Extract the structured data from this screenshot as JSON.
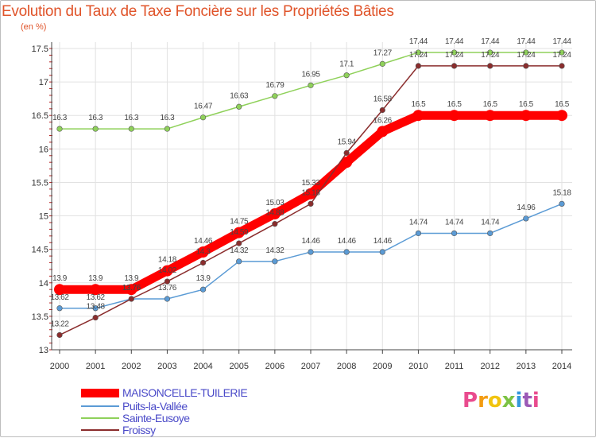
{
  "chart_data": {
    "type": "line",
    "title": "Evolution du Taux de Taxe Foncière sur les Propriétés Bâties",
    "ylabel": "(en %)",
    "xlabel": "",
    "x": [
      "2000",
      "2001",
      "2002",
      "2003",
      "2004",
      "2005",
      "2006",
      "2007",
      "2008",
      "2009",
      "2010",
      "2011",
      "2012",
      "2013",
      "2014"
    ],
    "ylim": [
      13,
      17.5
    ],
    "yticks": [
      "13",
      "13.5",
      "14",
      "14.5",
      "15",
      "15.5",
      "16",
      "16.5",
      "17",
      "17.5"
    ],
    "series": [
      {
        "name": "MAISONCELLE-TUILERIE",
        "color": "#ff0000",
        "values": [
          13.9,
          13.9,
          13.9,
          14.18,
          14.46,
          14.75,
          15.03,
          15.33,
          15.8,
          16.26,
          16.5,
          16.5,
          16.5,
          16.5,
          16.5
        ],
        "labels": [
          "13.9",
          "13.9",
          "13.9",
          "14.18",
          "14.46",
          "14.75",
          "15.03",
          "15.33",
          "",
          "16.26",
          "16.5",
          "16.5",
          "16.5",
          "16.5",
          "16.5"
        ]
      },
      {
        "name": "Puits-la-Vallée",
        "color": "#5b9bd5",
        "values": [
          13.62,
          13.62,
          13.76,
          13.76,
          13.9,
          14.32,
          14.32,
          14.46,
          14.46,
          14.46,
          14.74,
          14.74,
          14.74,
          14.96,
          15.18
        ],
        "labels": [
          "13.62",
          "13.62",
          "13.76",
          "13.76",
          "13.9",
          "14.32",
          "14.32",
          "14.46",
          "14.46",
          "14.46",
          "14.74",
          "14.74",
          "14.74",
          "14.96",
          "15.18"
        ]
      },
      {
        "name": "Sainte-Eusoye",
        "color": "#8fd15a",
        "values": [
          16.3,
          16.3,
          16.3,
          16.3,
          16.47,
          16.63,
          16.79,
          16.95,
          17.1,
          17.27,
          17.44,
          17.44,
          17.44,
          17.44,
          17.44
        ],
        "labels": [
          "16.3",
          "16.3",
          "16.3",
          "16.3",
          "16.47",
          "16.63",
          "16.79",
          "16.95",
          "17.1",
          "17.27",
          "17.44",
          "17.44",
          "17.44",
          "17.44",
          "17.44"
        ]
      },
      {
        "name": "Froissy",
        "color": "#8b2d2d",
        "values": [
          13.22,
          13.48,
          13.76,
          14.02,
          14.3,
          14.59,
          14.88,
          15.18,
          15.94,
          16.58,
          17.24,
          17.24,
          17.24,
          17.24,
          17.24
        ],
        "labels": [
          "13.22",
          "13.48",
          "13.76",
          "14.02",
          "14.3",
          "14.59",
          "14.88",
          "15.18",
          "15.94",
          "16.58",
          "17.24",
          "17.24",
          "17.24",
          "17.24",
          "17.24"
        ]
      }
    ],
    "grid": true,
    "legend": "bottom-left"
  },
  "branding": {
    "logo_letters": [
      "P",
      "r",
      "o",
      "x",
      "i",
      "t",
      "i"
    ],
    "logo_colors": [
      "#e94b8e",
      "#f39c12",
      "#f1c40f",
      "#7cc243",
      "#3498db",
      "#9b59b6",
      "#e94b8e"
    ]
  }
}
